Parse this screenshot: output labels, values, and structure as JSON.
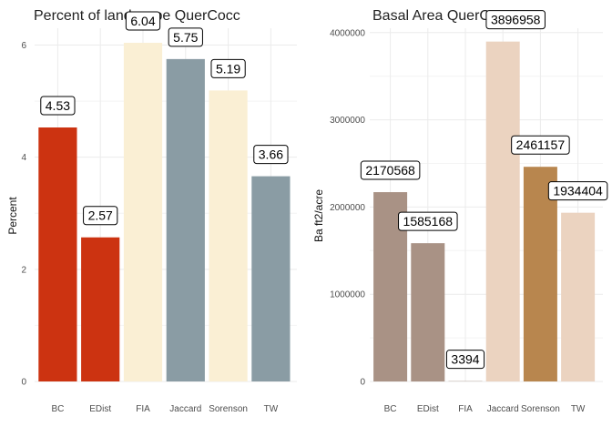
{
  "chart_data": [
    {
      "type": "bar",
      "title": "Percent of landscape  QuerCocc",
      "xlabel": "",
      "ylabel": "Percent",
      "categories": [
        "BC",
        "EDist",
        "FIA",
        "Jaccard",
        "Sorenson",
        "TW"
      ],
      "values": [
        4.53,
        2.57,
        6.04,
        5.75,
        5.19,
        3.66
      ],
      "data_labels": [
        "4.53",
        "2.57",
        "6.04",
        "5.75",
        "5.19",
        "3.66"
      ],
      "colors": [
        "#cc3311",
        "#cc3311",
        "#faefd4",
        "#8a9ca4",
        "#faefd4",
        "#8a9ca4"
      ],
      "ylim": [
        0,
        6.3
      ],
      "yticks": [
        0,
        2,
        4,
        6
      ],
      "ytick_labels": [
        "0",
        "2",
        "4",
        "6"
      ],
      "grid": true,
      "legend": "none"
    },
    {
      "type": "bar",
      "title": "Basal Area  QuerCocc",
      "xlabel": "",
      "ylabel": "Ba ft2/acre",
      "categories": [
        "BC",
        "EDist",
        "FIA",
        "Jaccard",
        "Sorenson",
        "TW"
      ],
      "values": [
        2170568,
        1585168,
        3394,
        3896958,
        2461157,
        1934404
      ],
      "data_labels": [
        "2170568",
        "1585168",
        "3394",
        "3896958",
        "2461157",
        "1934404"
      ],
      "colors": [
        "#a99285",
        "#a99285",
        "#a99285",
        "#ebd3c0",
        "#b8864e",
        "#ebd3c0"
      ],
      "ylim": [
        0,
        4050000
      ],
      "yticks": [
        0,
        1000000,
        2000000,
        3000000,
        4000000
      ],
      "ytick_labels": [
        "0",
        "1000000",
        "2000000",
        "3000000",
        "4000000"
      ],
      "grid": true,
      "legend": "none"
    }
  ]
}
